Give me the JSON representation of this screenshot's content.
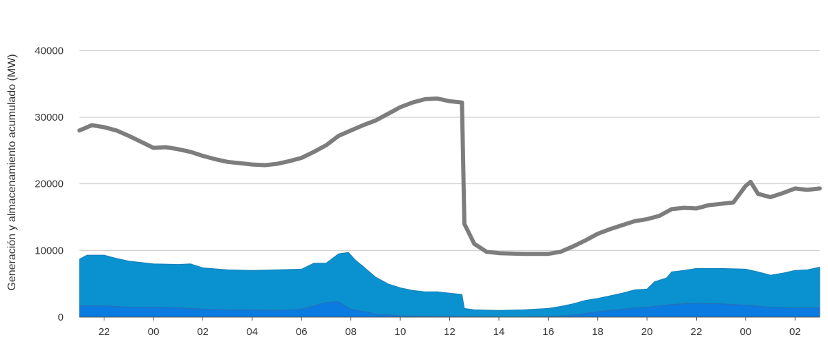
{
  "chart_data": {
    "type": "area",
    "title": "",
    "xlabel": "",
    "ylabel": "Generación y almacenamiento acumulado (MW)",
    "ylim": [
      0,
      45000
    ],
    "yticks": [
      0,
      10000,
      20000,
      30000,
      40000
    ],
    "ytick_labels": [
      "0",
      "10000",
      "20000",
      "30000",
      "40000"
    ],
    "xlim": [
      21.0,
      51.0
    ],
    "xticks": [
      22,
      24,
      26,
      28,
      30,
      32,
      34,
      36,
      38,
      40,
      42,
      44,
      46,
      48,
      50
    ],
    "xtick_labels": [
      "22",
      "00",
      "02",
      "04",
      "06",
      "08",
      "10",
      "12",
      "14",
      "16",
      "18",
      "20",
      "22",
      "00",
      "02"
    ],
    "grid": true,
    "legend": "none",
    "series": [
      {
        "kind": "area",
        "color": "#0a7be0",
        "points": [
          [
            21.0,
            1700
          ],
          [
            22.0,
            1700
          ],
          [
            23.0,
            1500
          ],
          [
            24.0,
            1500
          ],
          [
            25.0,
            1400
          ],
          [
            26.0,
            1200
          ],
          [
            27.0,
            1100
          ],
          [
            28.0,
            1100
          ],
          [
            29.0,
            1000
          ],
          [
            30.0,
            1200
          ],
          [
            31.0,
            2200
          ],
          [
            31.5,
            2300
          ],
          [
            32.0,
            1200
          ],
          [
            33.0,
            500
          ],
          [
            34.0,
            200
          ],
          [
            35.0,
            100
          ],
          [
            36.0,
            80
          ],
          [
            37.0,
            50
          ],
          [
            38.0,
            30
          ],
          [
            39.0,
            30
          ],
          [
            40.0,
            80
          ],
          [
            41.0,
            300
          ],
          [
            42.0,
            800
          ],
          [
            43.0,
            1200
          ],
          [
            44.0,
            1500
          ],
          [
            45.0,
            1900
          ],
          [
            46.0,
            2100
          ],
          [
            47.0,
            2000
          ],
          [
            48.0,
            1800
          ],
          [
            49.0,
            1500
          ],
          [
            50.0,
            1400
          ],
          [
            51.0,
            1400
          ]
        ]
      },
      {
        "kind": "area",
        "color": "#0a91cf",
        "points": [
          [
            21.0,
            8700
          ],
          [
            21.3,
            9300
          ],
          [
            22.0,
            9300
          ],
          [
            22.5,
            8800
          ],
          [
            23.0,
            8400
          ],
          [
            24.0,
            8000
          ],
          [
            25.0,
            7900
          ],
          [
            25.5,
            8000
          ],
          [
            26.0,
            7400
          ],
          [
            27.0,
            7100
          ],
          [
            28.0,
            7000
          ],
          [
            29.0,
            7100
          ],
          [
            30.0,
            7200
          ],
          [
            30.5,
            8100
          ],
          [
            31.0,
            8100
          ],
          [
            31.5,
            9500
          ],
          [
            31.9,
            9700
          ],
          [
            32.2,
            8500
          ],
          [
            32.5,
            7600
          ],
          [
            33.0,
            6000
          ],
          [
            33.5,
            5000
          ],
          [
            34.0,
            4400
          ],
          [
            34.5,
            4000
          ],
          [
            35.0,
            3800
          ],
          [
            35.5,
            3800
          ],
          [
            36.0,
            3600
          ],
          [
            36.5,
            3400
          ],
          [
            36.6,
            1300
          ],
          [
            37.0,
            1100
          ],
          [
            38.0,
            1000
          ],
          [
            39.0,
            1100
          ],
          [
            40.0,
            1300
          ],
          [
            40.5,
            1600
          ],
          [
            41.0,
            2000
          ],
          [
            41.5,
            2500
          ],
          [
            42.0,
            2800
          ],
          [
            42.5,
            3200
          ],
          [
            43.0,
            3600
          ],
          [
            43.5,
            4100
          ],
          [
            44.0,
            4200
          ],
          [
            44.3,
            5300
          ],
          [
            44.8,
            5900
          ],
          [
            45.0,
            6800
          ],
          [
            45.5,
            7000
          ],
          [
            46.0,
            7300
          ],
          [
            47.0,
            7300
          ],
          [
            48.0,
            7200
          ],
          [
            48.5,
            6800
          ],
          [
            49.0,
            6300
          ],
          [
            49.5,
            6600
          ],
          [
            50.0,
            7000
          ],
          [
            50.5,
            7100
          ],
          [
            51.0,
            7500
          ]
        ]
      },
      {
        "kind": "line",
        "color": "#7d7d7d",
        "points": [
          [
            21.0,
            28000
          ],
          [
            21.5,
            28800
          ],
          [
            22.0,
            28500
          ],
          [
            22.5,
            28000
          ],
          [
            23.0,
            27200
          ],
          [
            23.5,
            26300
          ],
          [
            24.0,
            25400
          ],
          [
            24.5,
            25500
          ],
          [
            25.0,
            25200
          ],
          [
            25.5,
            24800
          ],
          [
            26.0,
            24200
          ],
          [
            26.5,
            23700
          ],
          [
            27.0,
            23300
          ],
          [
            27.5,
            23100
          ],
          [
            28.0,
            22900
          ],
          [
            28.5,
            22800
          ],
          [
            29.0,
            23000
          ],
          [
            29.5,
            23400
          ],
          [
            30.0,
            23900
          ],
          [
            30.5,
            24800
          ],
          [
            31.0,
            25800
          ],
          [
            31.5,
            27200
          ],
          [
            32.0,
            28000
          ],
          [
            32.5,
            28800
          ],
          [
            33.0,
            29500
          ],
          [
            33.5,
            30500
          ],
          [
            34.0,
            31500
          ],
          [
            34.5,
            32200
          ],
          [
            35.0,
            32700
          ],
          [
            35.5,
            32800
          ],
          [
            36.0,
            32400
          ],
          [
            36.5,
            32200
          ],
          [
            36.6,
            14000
          ],
          [
            37.0,
            11000
          ],
          [
            37.5,
            9800
          ],
          [
            38.0,
            9600
          ],
          [
            39.0,
            9500
          ],
          [
            40.0,
            9500
          ],
          [
            40.5,
            9800
          ],
          [
            41.0,
            10600
          ],
          [
            41.5,
            11500
          ],
          [
            42.0,
            12500
          ],
          [
            42.5,
            13200
          ],
          [
            43.0,
            13800
          ],
          [
            43.5,
            14400
          ],
          [
            44.0,
            14700
          ],
          [
            44.5,
            15200
          ],
          [
            45.0,
            16200
          ],
          [
            45.5,
            16400
          ],
          [
            46.0,
            16300
          ],
          [
            46.5,
            16800
          ],
          [
            47.0,
            17000
          ],
          [
            47.5,
            17200
          ],
          [
            48.0,
            19700
          ],
          [
            48.2,
            20300
          ],
          [
            48.5,
            18500
          ],
          [
            49.0,
            18000
          ],
          [
            49.5,
            18600
          ],
          [
            50.0,
            19300
          ],
          [
            50.5,
            19100
          ],
          [
            51.0,
            19300
          ]
        ]
      }
    ]
  }
}
